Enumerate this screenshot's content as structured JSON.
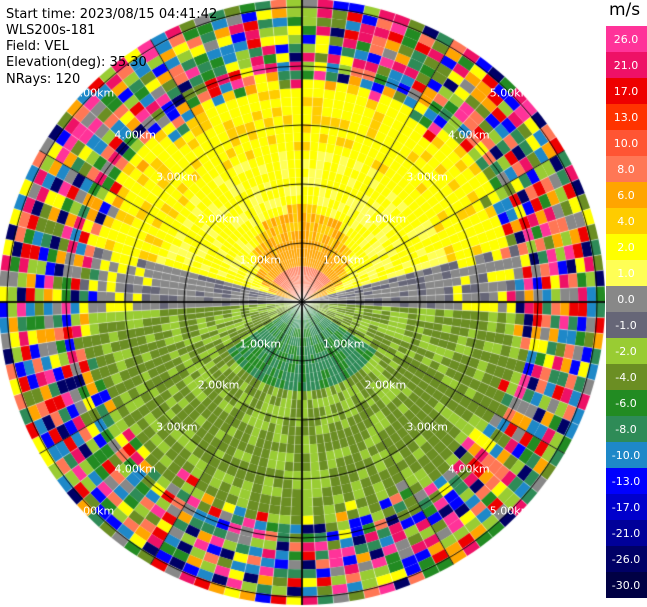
{
  "header": {
    "start_time": "Start time: 2023/08/15 04:41:42",
    "instrument": "WLS200s-181",
    "field": "Field: VEL",
    "elevation": "Elevation(deg): 35.30",
    "nrays": "NRays: 120"
  },
  "colorbar": {
    "unit": "m/s",
    "bins": [
      {
        "label": "26.0",
        "color": "#ff3399"
      },
      {
        "label": "21.0",
        "color": "#ee1166"
      },
      {
        "label": "17.0",
        "color": "#ee0000"
      },
      {
        "label": "13.0",
        "color": "#ff3300"
      },
      {
        "label": "10.0",
        "color": "#ff5533"
      },
      {
        "label": "8.0",
        "color": "#ff7755"
      },
      {
        "label": "6.0",
        "color": "#ffa500"
      },
      {
        "label": "4.0",
        "color": "#ffcc00"
      },
      {
        "label": "2.0",
        "color": "#ffff00"
      },
      {
        "label": "1.0",
        "color": "#ffff55"
      },
      {
        "label": "0.0",
        "color": "#888888"
      },
      {
        "label": "-1.0",
        "color": "#666677"
      },
      {
        "label": "-2.0",
        "color": "#99cc33"
      },
      {
        "label": "-4.0",
        "color": "#6b8e23"
      },
      {
        "label": "-6.0",
        "color": "#228b22"
      },
      {
        "label": "-8.0",
        "color": "#2e8b57"
      },
      {
        "label": "-10.0",
        "color": "#1e88c8"
      },
      {
        "label": "-13.0",
        "color": "#0000ff"
      },
      {
        "label": "-17.0",
        "color": "#0000cc"
      },
      {
        "label": "-21.0",
        "color": "#000099"
      },
      {
        "label": "-26.0",
        "color": "#000066"
      },
      {
        "label": "-30.0",
        "color": "#000044"
      }
    ]
  },
  "rings": [
    {
      "label": "1.00km"
    },
    {
      "label": "2.00km"
    },
    {
      "label": "3.00km"
    },
    {
      "label": "4.00km"
    },
    {
      "label": "5.00km"
    }
  ]
}
